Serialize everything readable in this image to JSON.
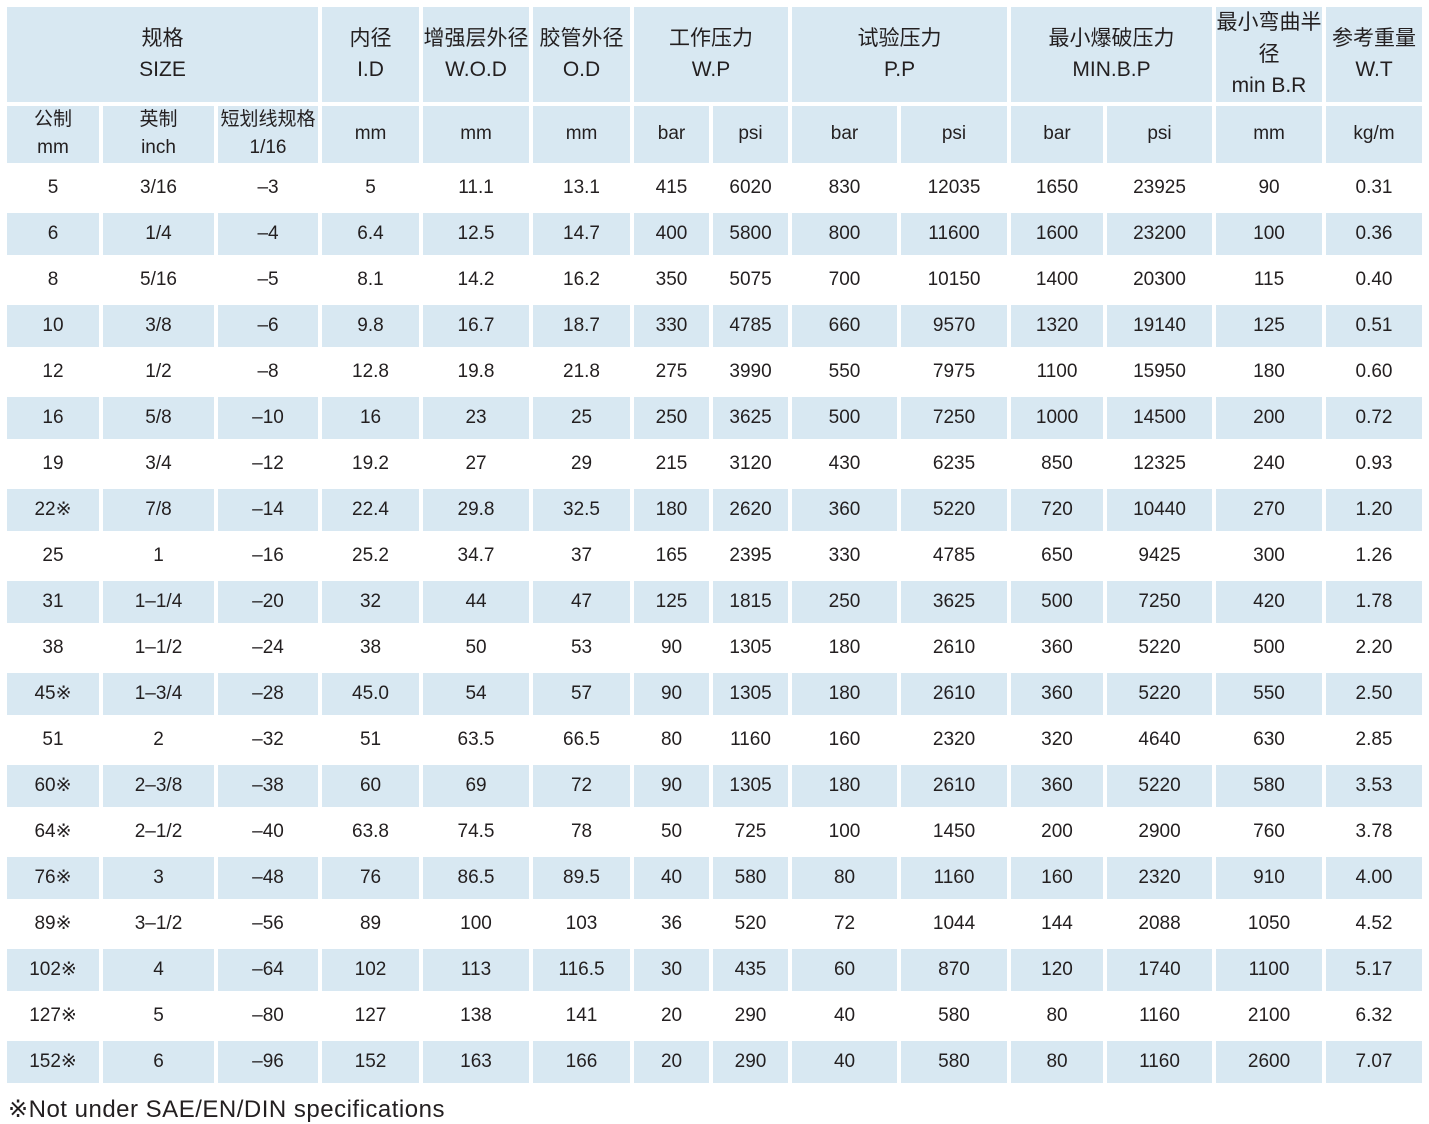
{
  "colors": {
    "cell_blue": "#d8e8f2",
    "text": "#231f20"
  },
  "table": {
    "header_groups": [
      {
        "label": "规格\nSIZE",
        "colspan": 3
      },
      {
        "label": "内径\nI.D",
        "colspan": 1
      },
      {
        "label": "增强层外径\nW.O.D",
        "colspan": 1
      },
      {
        "label": "胶管外径\nO.D",
        "colspan": 1
      },
      {
        "label": "工作压力\nW.P",
        "colspan": 2
      },
      {
        "label": "试验压力\nP.P",
        "colspan": 2
      },
      {
        "label": "最小爆破压力\nMIN.B.P",
        "colspan": 2
      },
      {
        "label": "最小弯曲半径\nmin B.R",
        "colspan": 1
      },
      {
        "label": "参考重量\nW.T",
        "colspan": 1
      }
    ],
    "subheaders": [
      "公制\nmm",
      "英制\ninch",
      "短划线规格\n1/16",
      "mm",
      "mm",
      "mm",
      "bar",
      "psi",
      "bar",
      "psi",
      "bar",
      "psi",
      "mm",
      "kg/m"
    ],
    "rows": [
      [
        "5",
        "3/16",
        "–3",
        "5",
        "11.1",
        "13.1",
        "415",
        "6020",
        "830",
        "12035",
        "1650",
        "23925",
        "90",
        "0.31"
      ],
      [
        "6",
        "1/4",
        "–4",
        "6.4",
        "12.5",
        "14.7",
        "400",
        "5800",
        "800",
        "11600",
        "1600",
        "23200",
        "100",
        "0.36"
      ],
      [
        "8",
        "5/16",
        "–5",
        "8.1",
        "14.2",
        "16.2",
        "350",
        "5075",
        "700",
        "10150",
        "1400",
        "20300",
        "115",
        "0.40"
      ],
      [
        "10",
        "3/8",
        "–6",
        "9.8",
        "16.7",
        "18.7",
        "330",
        "4785",
        "660",
        "9570",
        "1320",
        "19140",
        "125",
        "0.51"
      ],
      [
        "12",
        "1/2",
        "–8",
        "12.8",
        "19.8",
        "21.8",
        "275",
        "3990",
        "550",
        "7975",
        "1100",
        "15950",
        "180",
        "0.60"
      ],
      [
        "16",
        "5/8",
        "–10",
        "16",
        "23",
        "25",
        "250",
        "3625",
        "500",
        "7250",
        "1000",
        "14500",
        "200",
        "0.72"
      ],
      [
        "19",
        "3/4",
        "–12",
        "19.2",
        "27",
        "29",
        "215",
        "3120",
        "430",
        "6235",
        "850",
        "12325",
        "240",
        "0.93"
      ],
      [
        "22※",
        "7/8",
        "–14",
        "22.4",
        "29.8",
        "32.5",
        "180",
        "2620",
        "360",
        "5220",
        "720",
        "10440",
        "270",
        "1.20"
      ],
      [
        "25",
        "1",
        "–16",
        "25.2",
        "34.7",
        "37",
        "165",
        "2395",
        "330",
        "4785",
        "650",
        "9425",
        "300",
        "1.26"
      ],
      [
        "31",
        "1–1/4",
        "–20",
        "32",
        "44",
        "47",
        "125",
        "1815",
        "250",
        "3625",
        "500",
        "7250",
        "420",
        "1.78"
      ],
      [
        "38",
        "1–1/2",
        "–24",
        "38",
        "50",
        "53",
        "90",
        "1305",
        "180",
        "2610",
        "360",
        "5220",
        "500",
        "2.20"
      ],
      [
        "45※",
        "1–3/4",
        "–28",
        "45.0",
        "54",
        "57",
        "90",
        "1305",
        "180",
        "2610",
        "360",
        "5220",
        "550",
        "2.50"
      ],
      [
        "51",
        "2",
        "–32",
        "51",
        "63.5",
        "66.5",
        "80",
        "1160",
        "160",
        "2320",
        "320",
        "4640",
        "630",
        "2.85"
      ],
      [
        "60※",
        "2–3/8",
        "–38",
        "60",
        "69",
        "72",
        "90",
        "1305",
        "180",
        "2610",
        "360",
        "5220",
        "580",
        "3.53"
      ],
      [
        "64※",
        "2–1/2",
        "–40",
        "63.8",
        "74.5",
        "78",
        "50",
        "725",
        "100",
        "1450",
        "200",
        "2900",
        "760",
        "3.78"
      ],
      [
        "76※",
        "3",
        "–48",
        "76",
        "86.5",
        "89.5",
        "40",
        "580",
        "80",
        "1160",
        "160",
        "2320",
        "910",
        "4.00"
      ],
      [
        "89※",
        "3–1/2",
        "–56",
        "89",
        "100",
        "103",
        "36",
        "520",
        "72",
        "1044",
        "144",
        "2088",
        "1050",
        "4.52"
      ],
      [
        "102※",
        "4",
        "–64",
        "102",
        "113",
        "116.5",
        "30",
        "435",
        "60",
        "870",
        "120",
        "1740",
        "1100",
        "5.17"
      ],
      [
        "127※",
        "5",
        "–80",
        "127",
        "138",
        "141",
        "20",
        "290",
        "40",
        "580",
        "80",
        "1160",
        "2100",
        "6.32"
      ],
      [
        "152※",
        "6",
        "–96",
        "152",
        "163",
        "166",
        "20",
        "290",
        "40",
        "580",
        "80",
        "1160",
        "2600",
        "7.07"
      ]
    ],
    "footnote": "※Not under SAE/EN/DIN specifications"
  }
}
